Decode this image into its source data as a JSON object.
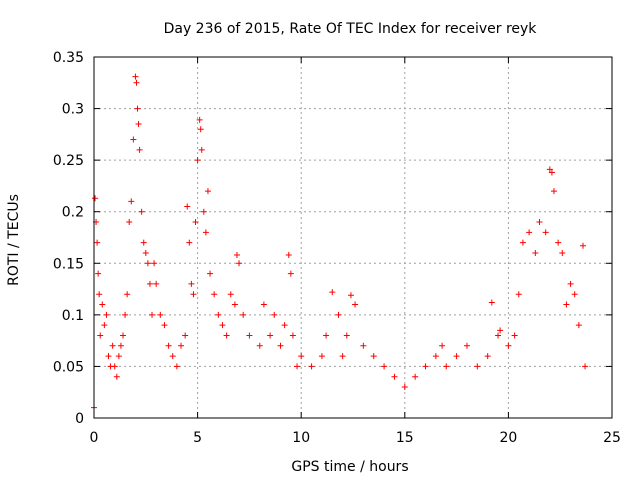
{
  "chart_data": {
    "type": "scatter",
    "title": "Day 236 of 2015, Rate Of TEC Index for receiver reyk",
    "xlabel": "GPS time / hours",
    "ylabel": "ROTI / TECUs",
    "xlim": [
      0,
      25
    ],
    "ylim": [
      0,
      0.35
    ],
    "x_ticks": [
      0,
      5,
      10,
      15,
      20,
      25
    ],
    "y_ticks": [
      0,
      0.05,
      0.1,
      0.15,
      0.2,
      0.25,
      0.3,
      0.35
    ],
    "x_tick_labels": [
      "0",
      "5",
      "10",
      "15",
      "20",
      "25"
    ],
    "y_tick_labels": [
      "0",
      "0.05",
      "0.1",
      "0.15",
      "0.2",
      "0.25",
      "0.3",
      "0.35"
    ],
    "grid": true,
    "marker": "+",
    "marker_color": "#ff0000",
    "series": [
      {
        "name": "ROTI",
        "points": [
          [
            0.0,
            0.01
          ],
          [
            0.05,
            0.213
          ],
          [
            0.1,
            0.19
          ],
          [
            0.15,
            0.17
          ],
          [
            0.2,
            0.14
          ],
          [
            0.25,
            0.12
          ],
          [
            0.3,
            0.08
          ],
          [
            0.4,
            0.11
          ],
          [
            0.5,
            0.09
          ],
          [
            0.6,
            0.1
          ],
          [
            0.7,
            0.06
          ],
          [
            0.8,
            0.05
          ],
          [
            0.9,
            0.07
          ],
          [
            1.0,
            0.05
          ],
          [
            1.1,
            0.04
          ],
          [
            1.2,
            0.06
          ],
          [
            1.3,
            0.07
          ],
          [
            1.4,
            0.08
          ],
          [
            1.5,
            0.1
          ],
          [
            1.6,
            0.12
          ],
          [
            1.7,
            0.19
          ],
          [
            1.8,
            0.21
          ],
          [
            1.9,
            0.27
          ],
          [
            2.0,
            0.331
          ],
          [
            2.05,
            0.325
          ],
          [
            2.1,
            0.3
          ],
          [
            2.15,
            0.285
          ],
          [
            2.2,
            0.26
          ],
          [
            2.3,
            0.2
          ],
          [
            2.4,
            0.17
          ],
          [
            2.5,
            0.16
          ],
          [
            2.6,
            0.15
          ],
          [
            2.7,
            0.13
          ],
          [
            2.8,
            0.1
          ],
          [
            2.9,
            0.15
          ],
          [
            3.0,
            0.13
          ],
          [
            3.2,
            0.1
          ],
          [
            3.4,
            0.09
          ],
          [
            3.6,
            0.07
          ],
          [
            3.8,
            0.06
          ],
          [
            4.0,
            0.05
          ],
          [
            4.2,
            0.07
          ],
          [
            4.4,
            0.08
          ],
          [
            4.5,
            0.205
          ],
          [
            4.6,
            0.17
          ],
          [
            4.7,
            0.13
          ],
          [
            4.8,
            0.12
          ],
          [
            4.9,
            0.19
          ],
          [
            5.0,
            0.25
          ],
          [
            5.1,
            0.289
          ],
          [
            5.15,
            0.28
          ],
          [
            5.2,
            0.26
          ],
          [
            5.3,
            0.2
          ],
          [
            5.4,
            0.18
          ],
          [
            5.5,
            0.22
          ],
          [
            5.6,
            0.14
          ],
          [
            5.8,
            0.12
          ],
          [
            6.0,
            0.1
          ],
          [
            6.2,
            0.09
          ],
          [
            6.4,
            0.08
          ],
          [
            6.6,
            0.12
          ],
          [
            6.8,
            0.11
          ],
          [
            6.9,
            0.158
          ],
          [
            7.0,
            0.15
          ],
          [
            7.2,
            0.1
          ],
          [
            7.5,
            0.08
          ],
          [
            8.0,
            0.07
          ],
          [
            8.2,
            0.11
          ],
          [
            8.5,
            0.08
          ],
          [
            8.7,
            0.1
          ],
          [
            9.0,
            0.07
          ],
          [
            9.2,
            0.09
          ],
          [
            9.4,
            0.158
          ],
          [
            9.5,
            0.14
          ],
          [
            9.6,
            0.08
          ],
          [
            9.8,
            0.05
          ],
          [
            10.0,
            0.06
          ],
          [
            10.5,
            0.05
          ],
          [
            11.0,
            0.06
          ],
          [
            11.2,
            0.08
          ],
          [
            11.5,
            0.122
          ],
          [
            11.8,
            0.1
          ],
          [
            12.0,
            0.06
          ],
          [
            12.2,
            0.08
          ],
          [
            12.4,
            0.119
          ],
          [
            12.6,
            0.11
          ],
          [
            13.0,
            0.07
          ],
          [
            13.5,
            0.06
          ],
          [
            14.0,
            0.05
          ],
          [
            14.5,
            0.04
          ],
          [
            15.0,
            0.03
          ],
          [
            15.5,
            0.04
          ],
          [
            16.0,
            0.05
          ],
          [
            16.5,
            0.06
          ],
          [
            16.8,
            0.07
          ],
          [
            17.0,
            0.05
          ],
          [
            17.5,
            0.06
          ],
          [
            18.0,
            0.07
          ],
          [
            18.5,
            0.05
          ],
          [
            19.0,
            0.06
          ],
          [
            19.2,
            0.112
          ],
          [
            19.5,
            0.08
          ],
          [
            19.6,
            0.085
          ],
          [
            20.0,
            0.07
          ],
          [
            20.3,
            0.08
          ],
          [
            20.5,
            0.12
          ],
          [
            20.7,
            0.17
          ],
          [
            21.0,
            0.18
          ],
          [
            21.3,
            0.16
          ],
          [
            21.5,
            0.19
          ],
          [
            21.8,
            0.18
          ],
          [
            22.0,
            0.241
          ],
          [
            22.1,
            0.238
          ],
          [
            22.2,
            0.22
          ],
          [
            22.4,
            0.17
          ],
          [
            22.6,
            0.16
          ],
          [
            22.8,
            0.11
          ],
          [
            23.0,
            0.13
          ],
          [
            23.2,
            0.12
          ],
          [
            23.4,
            0.09
          ],
          [
            23.6,
            0.167
          ],
          [
            23.7,
            0.05
          ]
        ]
      }
    ]
  }
}
